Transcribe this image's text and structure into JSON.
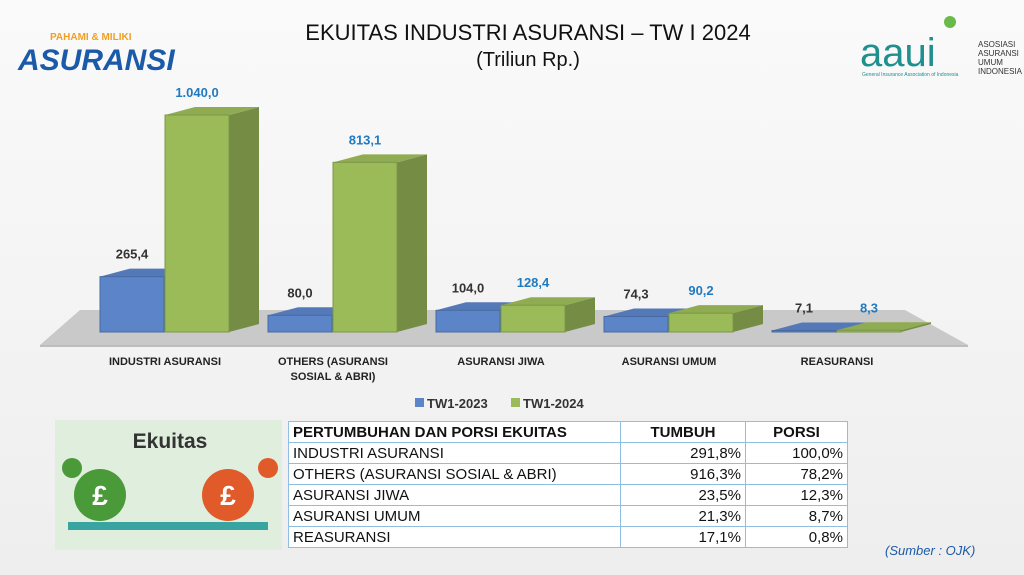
{
  "header": {
    "logo_tagline": "PAHAMI & MILIKI",
    "logo_word": "ASURANSI",
    "aaui": "aaui",
    "aaui_name": "ASOSIASI ASURANSI UMUM INDONESIA",
    "aaui_english": "General Insurance Association of Indonesia"
  },
  "chart_data": {
    "type": "bar3d",
    "title": "EKUITAS INDUSTRI ASURANSI – TW I 2024",
    "subtitle": "(Triliun Rp.)",
    "categories": [
      "INDUSTRI ASURANSI",
      "OTHERS (ASURANSI SOSIAL & ABRI)",
      "ASURANSI JIWA",
      "ASURANSI UMUM",
      "REASURANSI"
    ],
    "series": [
      {
        "name": "TW1-2023",
        "color": "#5b84c9",
        "values": [
          265.4,
          80.0,
          104.0,
          74.3,
          7.1
        ],
        "value_labels": [
          "265,4",
          "80,0",
          "104,0",
          "74,3",
          "7,1"
        ]
      },
      {
        "name": "TW1-2024",
        "color": "#9bbb59",
        "values": [
          1040.0,
          813.1,
          128.4,
          90.2,
          8.3
        ],
        "value_labels": [
          "1.040,0",
          "813,1",
          "128,4",
          "90,2",
          "8,3"
        ]
      }
    ]
  },
  "panel_title": "Ekuitas",
  "table": {
    "header": [
      "PERTUMBUHAN DAN PORSI EKUITAS",
      "TUMBUH",
      "PORSI"
    ],
    "rows": [
      [
        "INDUSTRI ASURANSI",
        "291,8%",
        "100,0%"
      ],
      [
        "OTHERS (ASURANSI SOSIAL & ABRI)",
        "916,3%",
        "78,2%"
      ],
      [
        "ASURANSI JIWA",
        "23,5%",
        "12,3%"
      ],
      [
        "ASURANSI UMUM",
        "21,3%",
        "8,7%"
      ],
      [
        "REASURANSI",
        "17,1%",
        "0,8%"
      ]
    ]
  },
  "source": "(Sumber : OJK)"
}
